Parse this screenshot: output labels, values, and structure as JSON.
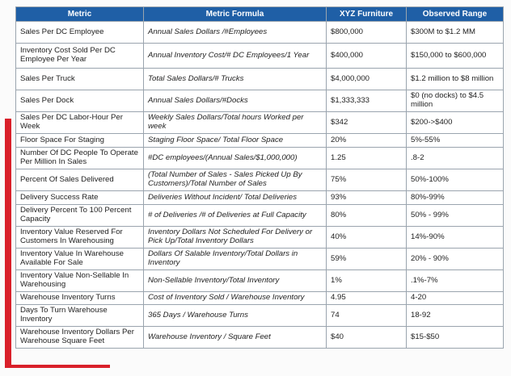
{
  "headers": [
    "Metric",
    "Metric Formula",
    "XYZ Furniture",
    "Observed Range"
  ],
  "rows": [
    {
      "metric": "Sales Per DC Employee",
      "formula": "Annual Sales Dollars /#Employees",
      "xyz": "$800,000",
      "range": "$300M to $1.2 MM"
    },
    {
      "metric": "Inventory Cost Sold Per DC Employee Per Year",
      "formula": "Annual Inventory Cost/# DC Employees/1 Year",
      "xyz": "$400,000",
      "range": "$150,000 to $600,000"
    },
    {
      "metric": "Sales Per Truck",
      "formula": "Total Sales Dollars/# Trucks",
      "xyz": "$4,000,000",
      "range": "$1.2 million to $8 million"
    },
    {
      "metric": "Sales Per Dock",
      "formula": "Annual Sales Dollars/#Docks",
      "xyz": "$1,333,333",
      "range": "$0 (no docks) to $4.5 million"
    },
    {
      "metric": "Sales Per DC Labor-Hour Per Week",
      "formula": "Weekly Sales Dollars/Total hours Worked per week",
      "xyz": "$342",
      "range": "$200->$400"
    },
    {
      "metric": "Floor Space For Staging",
      "formula": "Staging Floor Space/ Total Floor Space",
      "xyz": "20%",
      "range": "5%-55%"
    },
    {
      "metric": "Number Of DC People To Operate Per Million In Sales",
      "formula": "#DC employees/(Annual Sales/$1,000,000)",
      "xyz": "1.25",
      "range": ".8-2"
    },
    {
      "metric": "Percent Of Sales Delivered",
      "formula": "(Total Number of Sales - Sales Picked Up By Customers)/Total Number of Sales",
      "xyz": "75%",
      "range": "50%-100%"
    },
    {
      "metric": "Delivery Success Rate",
      "formula": "Deliveries Without Incident/ Total Deliveries",
      "xyz": "93%",
      "range": "80%-99%"
    },
    {
      "metric": "Delivery Percent To 100 Percent Capacity",
      "formula": "# of Deliveries /# of Deliveries at Full Capacity",
      "xyz": "80%",
      "range": "50% - 99%"
    },
    {
      "metric": "Inventory Value Reserved For Customers In Warehousing",
      "formula": "Inventory Dollars Not Scheduled For Delivery or Pick Up/Total Inventory Dollars",
      "xyz": "40%",
      "range": "14%-90%"
    },
    {
      "metric": "Inventory Value In Warehouse Available For Sale",
      "formula": "Dollars Of Salable Inventory/Total Dollars in Inventory",
      "xyz": "59%",
      "range": "20% - 90%"
    },
    {
      "metric": "Inventory Value Non-Sellable In Warehousing",
      "formula": "Non-Sellable Inventory/Total Inventory",
      "xyz": "1%",
      "range": ".1%-7%"
    },
    {
      "metric": "Warehouse Inventory Turns",
      "formula": "Cost of Inventory Sold / Warehouse Inventory",
      "xyz": "4.95",
      "range": "4-20"
    },
    {
      "metric": "Days To Turn Warehouse Inventory",
      "formula": "365 Days / Warehouse Turns",
      "xyz": "74",
      "range": "18-92"
    },
    {
      "metric": "Warehouse Inventory Dollars Per Warehouse Square Feet",
      "formula": "Warehouse Inventory / Square Feet",
      "xyz": "$40",
      "range": "$15-$50"
    }
  ]
}
